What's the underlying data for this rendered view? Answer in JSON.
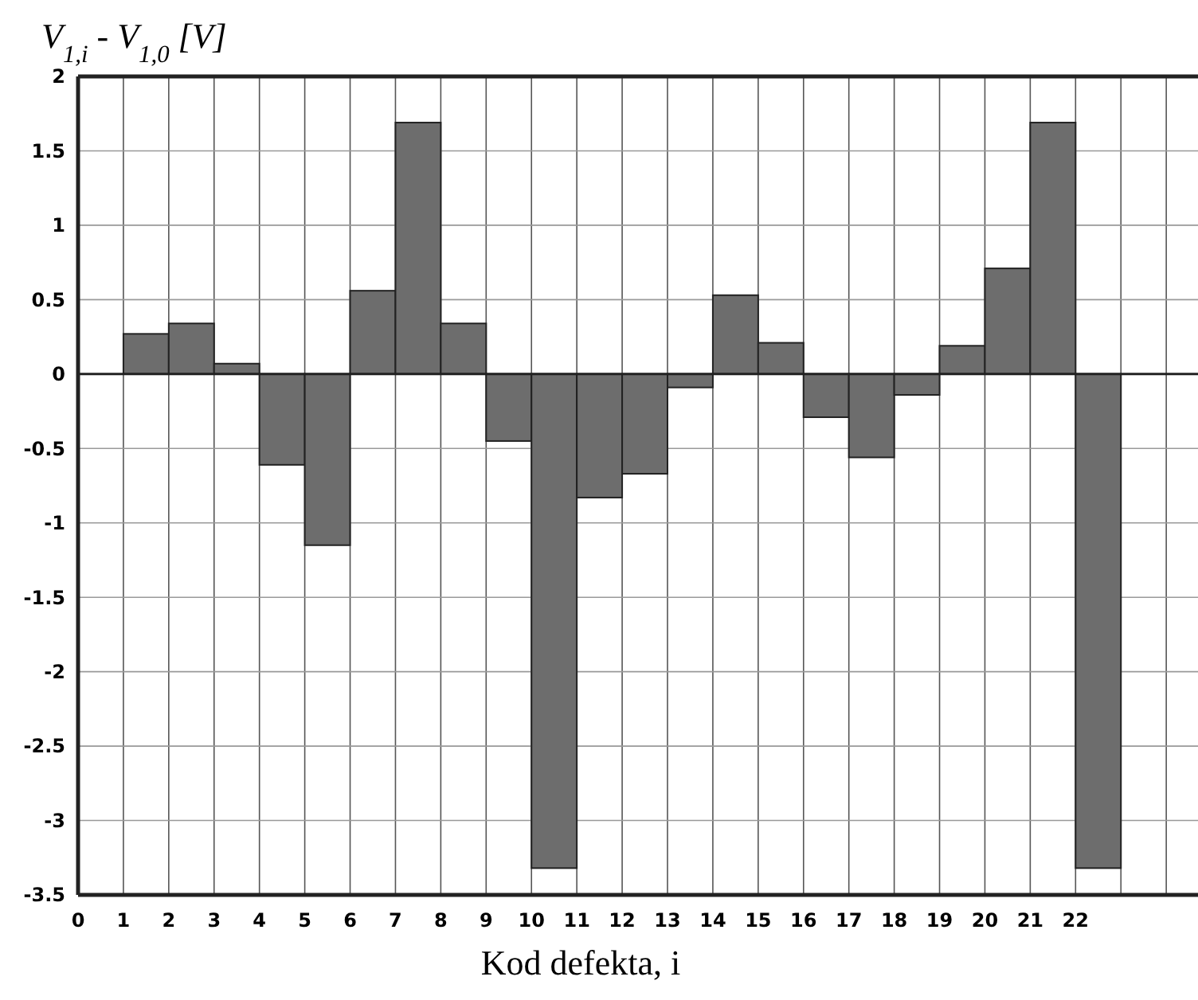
{
  "chart_data": {
    "type": "histogram",
    "ylabel": "V$_{1,i}$ - V$_{1,0}$ [V]",
    "xlabel": "Kod defekta, i",
    "bins": [
      1,
      2,
      3,
      4,
      5,
      6,
      7,
      8,
      9,
      10,
      11,
      12,
      13,
      14,
      15,
      16,
      17,
      18,
      19,
      20,
      21,
      22,
      23
    ],
    "values": [
      0.27,
      0.34,
      0.07,
      -0.61,
      -1.15,
      0.56,
      1.69,
      0.34,
      -0.45,
      -3.32,
      -0.83,
      -0.67,
      -0.09,
      0.53,
      0.21,
      -0.29,
      -0.56,
      -0.14,
      0.19,
      0.71,
      1.69,
      -3.32
    ],
    "color": "#6d6d6d",
    "xlim": [
      0,
      24.7
    ],
    "xticks": [
      0,
      1,
      2,
      3,
      4,
      5,
      6,
      7,
      8,
      9,
      10,
      11,
      12,
      13,
      14,
      15,
      16,
      17,
      18,
      19,
      20,
      21,
      22,
      {
        "value": 23,
        "label": null
      },
      {
        "value": 24,
        "label": null
      }
    ],
    "ylim": [
      -3.5,
      2
    ],
    "yticks": [
      -3.5,
      -3,
      -2.5,
      -2,
      -1.5,
      -1,
      -0.5,
      0,
      0.5,
      1,
      1.5,
      2
    ],
    "grid": true
  }
}
